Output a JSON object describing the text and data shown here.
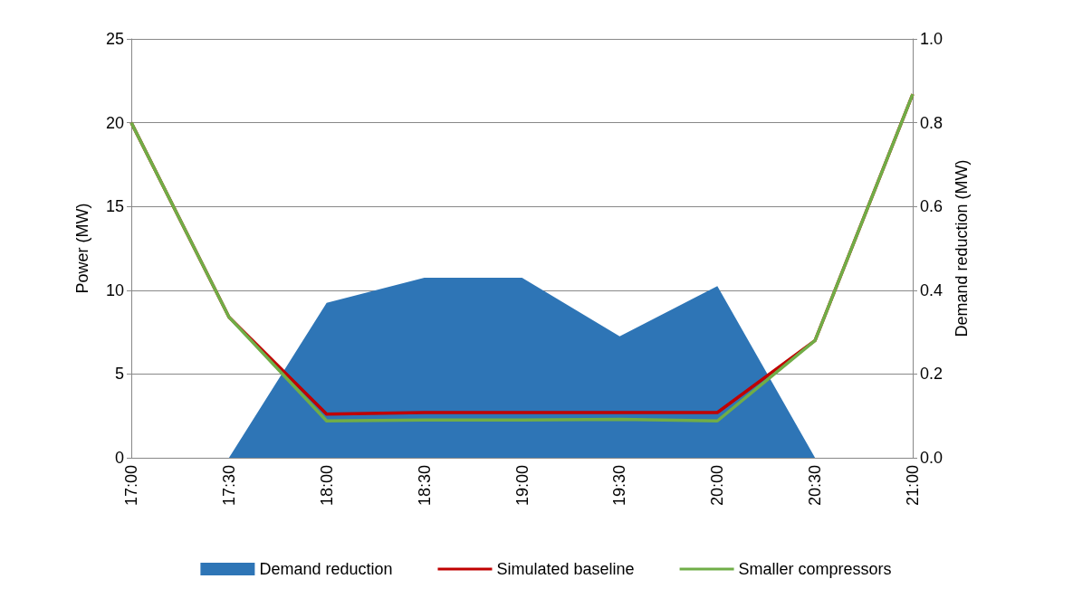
{
  "chart_data": {
    "type": "line",
    "ylabel": "Power (MW)",
    "y2label": "Demand reduction (MW)",
    "categories": [
      "17:00",
      "17:30",
      "18:00",
      "18:30",
      "19:00",
      "19:30",
      "20:00",
      "20:30",
      "21:00"
    ],
    "series": [
      {
        "name": "Demand reduction",
        "type": "area",
        "axis": "y2",
        "color": "#2e75b6",
        "values": [
          null,
          0,
          0.37,
          0.43,
          0.43,
          0.29,
          0.41,
          0,
          null
        ]
      },
      {
        "name": "Simulated baseline",
        "color": "#c00000",
        "values": [
          20,
          8.4,
          2.6,
          2.7,
          2.7,
          2.7,
          2.7,
          7.0,
          21.7
        ]
      },
      {
        "name": "Smaller compressors",
        "color": "#70ad47",
        "values": [
          20,
          8.4,
          2.2,
          2.25,
          2.25,
          2.3,
          2.2,
          7.0,
          21.7
        ]
      }
    ],
    "ylim": [
      0,
      25
    ],
    "yticks": [
      0,
      5,
      10,
      15,
      20,
      25
    ],
    "y2lim": [
      0,
      1
    ],
    "y2ticks": [
      {
        "value": 0,
        "label": "0.0"
      },
      {
        "value": 0.2,
        "label": "0.2"
      },
      {
        "value": 0.4,
        "label": "0.4"
      },
      {
        "value": 0.6,
        "label": "0.6"
      },
      {
        "value": 0.8,
        "label": "0.8"
      },
      {
        "value": 1,
        "label": "1.0"
      }
    ],
    "grid": "y",
    "legend": "bottom",
    "marker": "none",
    "line_style": "solid"
  }
}
